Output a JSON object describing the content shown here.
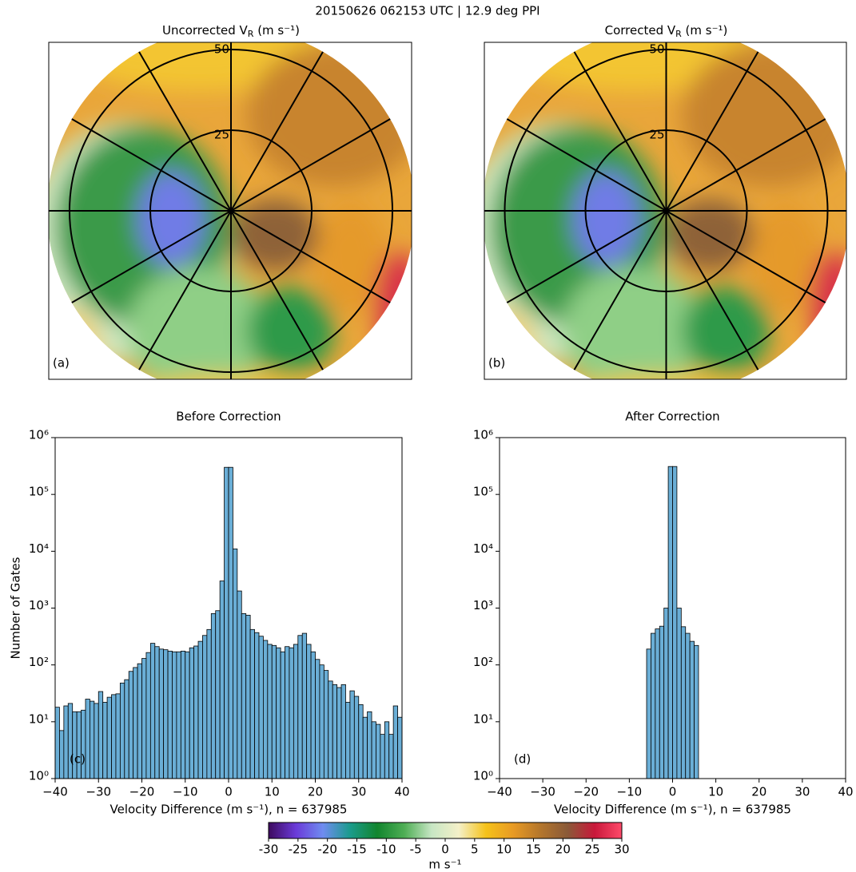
{
  "title": "20150626 062153 UTC | 12.9 deg PPI",
  "chart_data": [
    {
      "type": "ppi",
      "title": {
        "main": "Uncorrected V",
        "sub": "R",
        "unit": " (m s⁻¹)"
      },
      "panel_label": "(a)",
      "rlim": [
        0,
        50
      ],
      "rticks": [
        25,
        50
      ]
    },
    {
      "type": "ppi",
      "title": {
        "main": "Corrected V",
        "sub": "R",
        "unit": " (m s⁻¹)"
      },
      "panel_label": "(b)",
      "rlim": [
        0,
        50
      ],
      "rticks": [
        25,
        50
      ]
    },
    {
      "type": "histogram",
      "title": "Before Correction",
      "panel_label": "(c)",
      "xlabel": "Velocity Difference (m s⁻¹), n = 637985",
      "ylabel": "Number of Gates",
      "color": "#6aaed6",
      "log_y": true,
      "bins": [
        -40,
        -39,
        -38,
        -37,
        -36,
        -35,
        -34,
        -33,
        -32,
        -31,
        -30,
        -29,
        -28,
        -27,
        -26,
        -25,
        -24,
        -23,
        -22,
        -21,
        -20,
        -19,
        -18,
        -17,
        -16,
        -15,
        -14,
        -13,
        -12,
        -11,
        -10,
        -9,
        -8,
        -7,
        -6,
        -5,
        -4,
        -3,
        -2,
        -1,
        0,
        1,
        2,
        3,
        4,
        5,
        6,
        7,
        8,
        9,
        10,
        11,
        12,
        13,
        14,
        15,
        16,
        17,
        18,
        19,
        20,
        21,
        22,
        23,
        24,
        25,
        26,
        27,
        28,
        29,
        30,
        31,
        32,
        33,
        34,
        35,
        36,
        37,
        38,
        39,
        40
      ],
      "values": [
        18,
        7,
        19,
        21,
        15,
        15,
        16,
        25,
        23,
        21,
        34,
        22,
        27,
        30,
        31,
        48,
        55,
        77,
        90,
        105,
        130,
        165,
        240,
        210,
        190,
        185,
        175,
        170,
        170,
        175,
        170,
        200,
        215,
        260,
        330,
        420,
        800,
        900,
        3000,
        300000,
        300000,
        11000,
        2000,
        800,
        750,
        420,
        370,
        320,
        270,
        230,
        220,
        200,
        170,
        210,
        200,
        230,
        330,
        360,
        230,
        170,
        125,
        100,
        80,
        52,
        45,
        40,
        45,
        22,
        35,
        28,
        20,
        12,
        15,
        10,
        9,
        6,
        10,
        6,
        19,
        12
      ],
      "xlim": [
        -40,
        40
      ],
      "xticks": [
        {
          "value": -40,
          "label": "−40"
        },
        {
          "value": -30,
          "label": "−30"
        },
        {
          "value": -20,
          "label": "−20"
        },
        {
          "value": -10,
          "label": "−10"
        },
        0,
        10,
        20,
        30,
        40
      ],
      "ylim": [
        1,
        1000000
      ],
      "yticks": [
        {
          "value": 1,
          "label": "10⁰"
        },
        {
          "value": 10,
          "label": "10¹"
        },
        {
          "value": 100,
          "label": "10²"
        },
        {
          "value": 1000,
          "label": "10³"
        },
        {
          "value": 10000,
          "label": "10⁴"
        },
        {
          "value": 100000,
          "label": "10⁵"
        },
        {
          "value": 1000000,
          "label": "10⁶"
        }
      ]
    },
    {
      "type": "histogram",
      "title": "After Correction",
      "panel_label": "(d)",
      "xlabel": "Velocity Difference (m s⁻¹), n = 637985",
      "color": "#6aaed6",
      "log_y": true,
      "bins": [
        -6,
        -5,
        -4,
        -3,
        -2,
        -1,
        0,
        1,
        2,
        3,
        4,
        5,
        6
      ],
      "values": [
        190,
        360,
        430,
        480,
        1000,
        310000,
        310000,
        1000,
        470,
        360,
        260,
        220
      ],
      "xlim": [
        -40,
        40
      ],
      "xticks": [
        {
          "value": -40,
          "label": "−40"
        },
        {
          "value": -30,
          "label": "−30"
        },
        {
          "value": -20,
          "label": "−20"
        },
        {
          "value": -10,
          "label": "−10"
        },
        0,
        10,
        20,
        30,
        40
      ],
      "ylim": [
        1,
        1000000
      ],
      "yticks": [
        {
          "value": 1,
          "label": "10⁰"
        },
        {
          "value": 10,
          "label": "10¹"
        },
        {
          "value": 100,
          "label": "10²"
        },
        {
          "value": 1000,
          "label": "10³"
        },
        {
          "value": 10000,
          "label": "10⁴"
        },
        {
          "value": 100000,
          "label": "10⁵"
        },
        {
          "value": 1000000,
          "label": "10⁶"
        }
      ]
    },
    {
      "type": "colorbar",
      "label": "m s⁻¹",
      "lim": [
        -30,
        30
      ],
      "ticks": [
        -30,
        -25,
        -20,
        -15,
        -10,
        -5,
        0,
        5,
        10,
        15,
        20,
        25,
        30
      ],
      "colormap": [
        "#3d0a5e",
        "#6a3ad8",
        "#6f8cf0",
        "#1a9b8c",
        "#12852e",
        "#4fae55",
        "#c7e6c4",
        "#f4f0c8",
        "#f5c21a",
        "#e89a24",
        "#b4762c",
        "#8a5a38",
        "#c8183a",
        "#ff4a6a"
      ]
    }
  ]
}
